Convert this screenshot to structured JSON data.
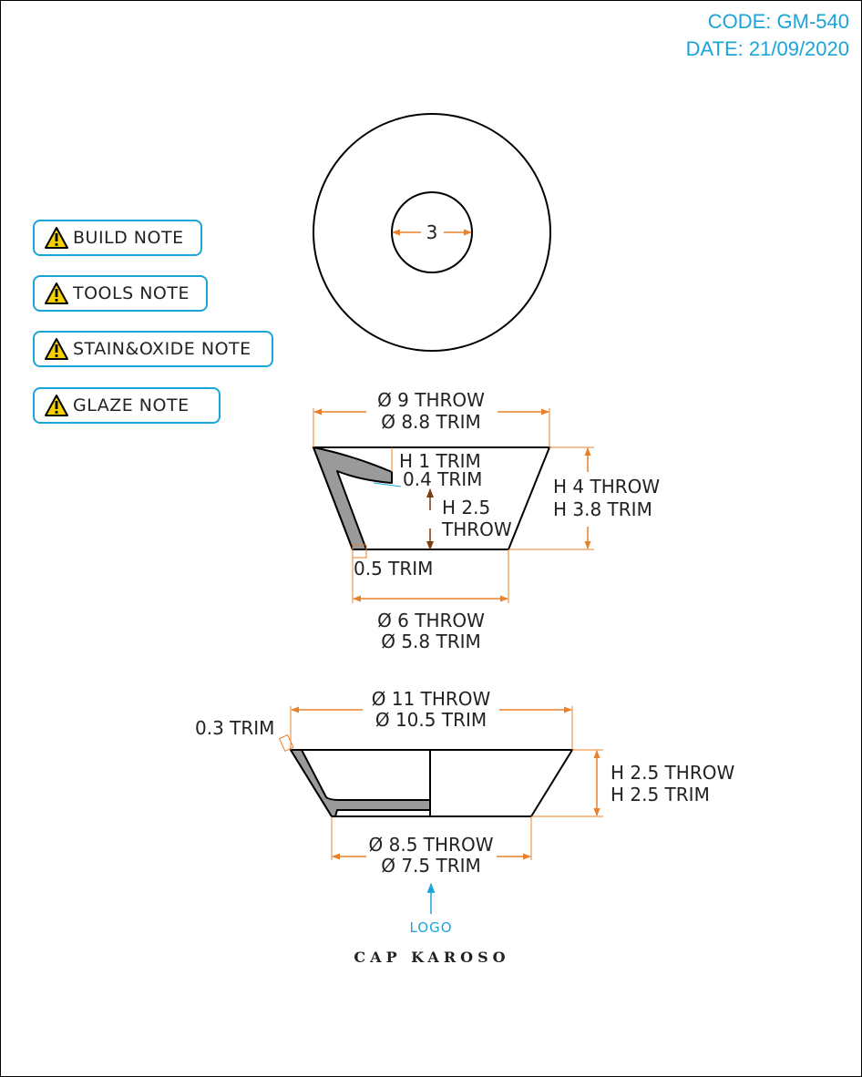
{
  "meta": {
    "code": "CODE: GM-540",
    "date": "DATE: 21/09/2020"
  },
  "notes": [
    {
      "label": "BUILD NOTE"
    },
    {
      "label": "TOOLS NOTE"
    },
    {
      "label": "STAIN&OXIDE NOTE"
    },
    {
      "label": "GLAZE NOTE"
    }
  ],
  "top_view": {
    "hole_dim": "3"
  },
  "cup": {
    "top_diameter_throw": "Ø 9 THROW",
    "top_diameter_trim": "Ø 8.8 TRIM",
    "inner_height_trim": "H 1 TRIM",
    "wall_trim": "0.4 TRIM",
    "inner_height_throw_a": "H 2.5",
    "inner_height_throw_b": "THROW",
    "height_throw": "H 4 THROW",
    "height_trim": "H 3.8 TRIM",
    "base_trim": "0.5 TRIM",
    "bottom_diameter_throw": "Ø 6 THROW",
    "bottom_diameter_trim": "Ø 5.8 TRIM"
  },
  "saucer": {
    "top_diameter_throw": "Ø 11 THROW",
    "top_diameter_trim": "Ø 10.5 TRIM",
    "rim_trim": "0.3 TRIM",
    "height_throw": "H 2.5 THROW",
    "height_trim": "H 2.5 TRIM",
    "bottom_diameter_throw": "Ø 8.5 THROW",
    "bottom_diameter_trim": "Ø 7.5 TRIM"
  },
  "logo_label": "LOGO",
  "product_name": "CAP KAROSO",
  "colors": {
    "accent": "#1aa4d8",
    "dimension": "#e8802a",
    "wall": "#9a9a9a"
  }
}
